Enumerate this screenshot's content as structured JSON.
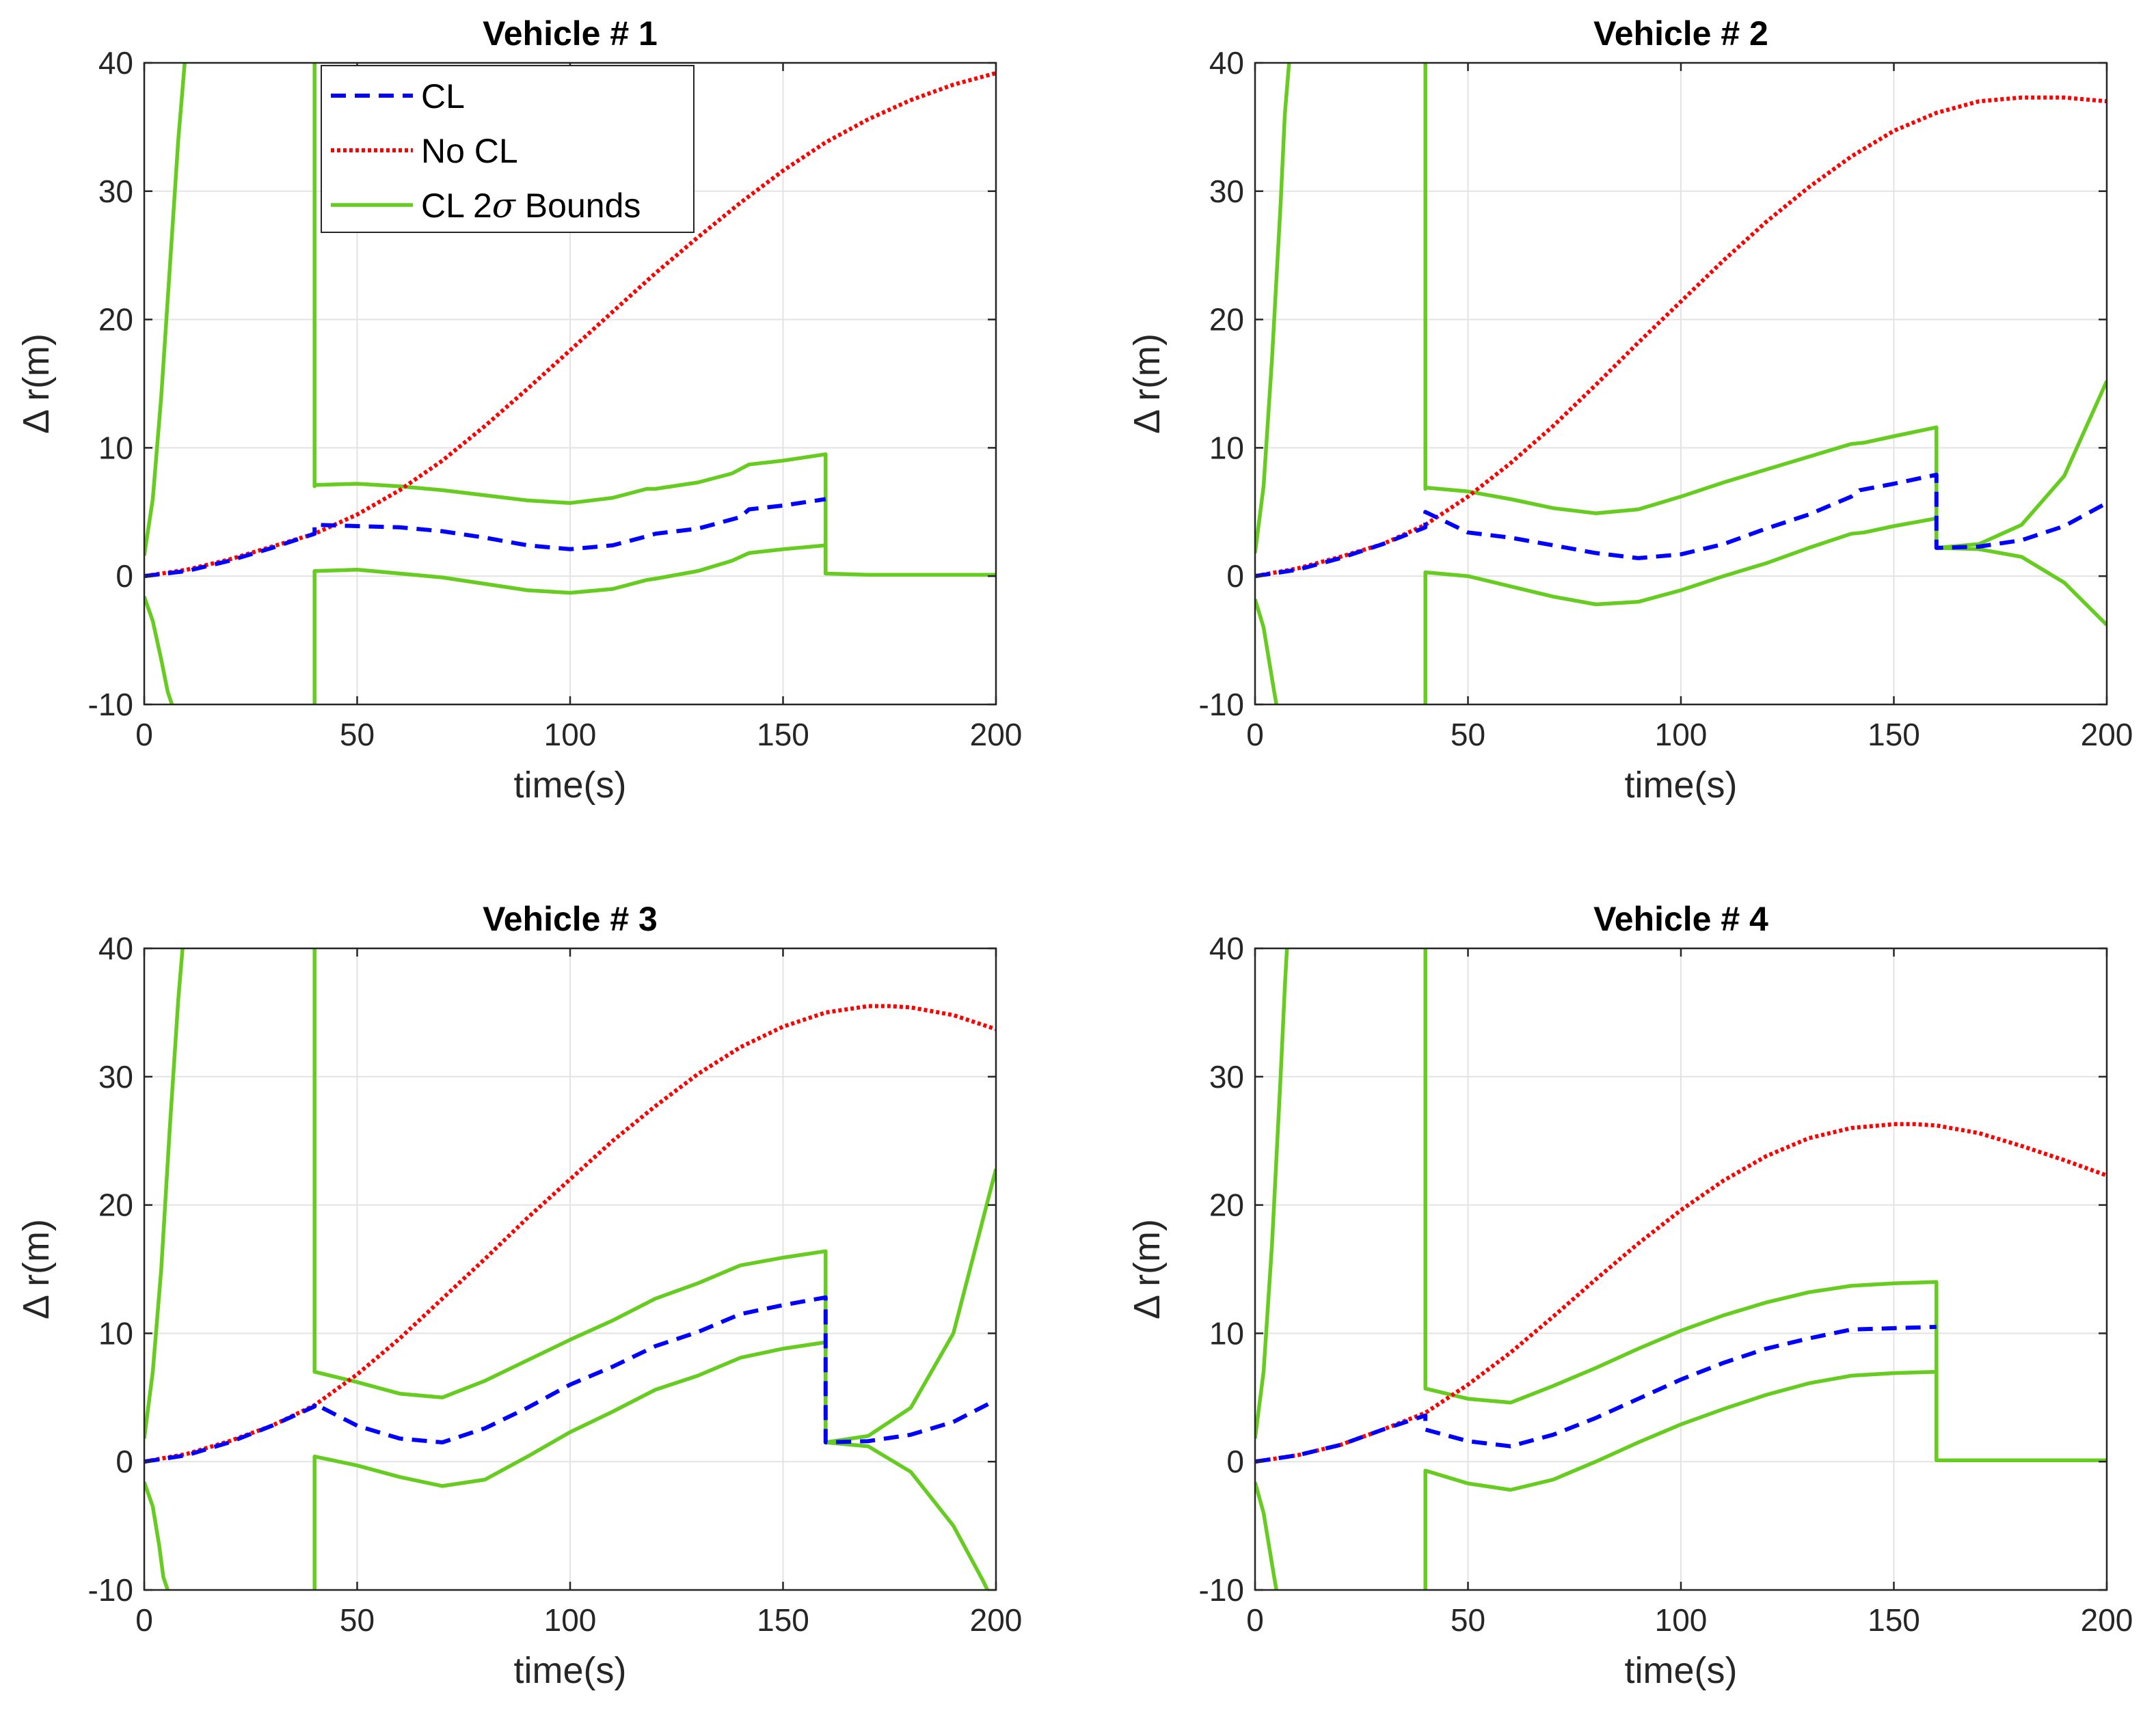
{
  "chart_data": [
    {
      "type": "line",
      "title": "Vehicle # 1",
      "xlabel": "time(s)",
      "ylabel": "Δ r(m)",
      "xlim": [
        0,
        200
      ],
      "ylim": [
        -10,
        40
      ],
      "xticks": [
        0,
        50,
        100,
        150,
        200
      ],
      "yticks": [
        -10,
        0,
        10,
        20,
        30,
        40
      ],
      "grid": true,
      "legend": [
        "CL",
        "No CL",
        "CL 2σ Bounds"
      ],
      "legend_position": "top-left",
      "series": [
        {
          "name": "CL",
          "x": [
            0,
            10,
            20,
            30,
            40,
            40,
            50,
            60,
            70,
            80,
            90,
            100,
            110,
            118,
            120,
            130,
            140,
            142,
            150,
            160
          ],
          "y": [
            0,
            0.4,
            1.2,
            2.2,
            3.3,
            4.0,
            3.9,
            3.8,
            3.5,
            3.0,
            2.4,
            2.1,
            2.4,
            3.1,
            3.3,
            3.7,
            4.6,
            5.2,
            5.5,
            6.0
          ]
        },
        {
          "name": "No CL",
          "x": [
            0,
            10,
            20,
            30,
            40,
            50,
            60,
            70,
            80,
            90,
            100,
            110,
            120,
            130,
            140,
            150,
            160,
            170,
            180,
            190,
            200
          ],
          "y": [
            0,
            0.5,
            1.3,
            2.3,
            3.3,
            4.8,
            6.7,
            9.0,
            11.7,
            14.6,
            17.6,
            20.6,
            23.6,
            26.4,
            29.1,
            31.6,
            33.8,
            35.6,
            37.1,
            38.3,
            39.2
          ]
        },
        {
          "name": "CL 2σ Bounds",
          "x": [
            0,
            2,
            4,
            6,
            8,
            9,
            9.5
          ],
          "y": [
            1.6,
            6,
            14,
            24,
            34,
            38,
            40
          ]
        },
        {
          "name": "CL 2σ Bounds",
          "x": [
            0,
            2,
            4,
            5.5,
            6.5
          ],
          "y": [
            -1.6,
            -3.5,
            -6.5,
            -9,
            -10
          ]
        },
        {
          "name": "CL 2σ Bounds",
          "x": [
            40,
            40,
            40,
            50,
            60,
            70,
            80,
            90,
            100,
            110,
            118,
            120,
            130,
            138,
            142,
            150,
            160,
            160,
            170,
            180,
            190,
            200
          ],
          "y": [
            40,
            7.0,
            7.1,
            7.2,
            7.0,
            6.7,
            6.3,
            5.9,
            5.7,
            6.1,
            6.8,
            6.8,
            7.3,
            8.0,
            8.7,
            9.0,
            9.5,
            0.2,
            0.1,
            0.1,
            0.1,
            0.1
          ]
        },
        {
          "name": "CL 2σ Bounds",
          "x": [
            40,
            40,
            40,
            50,
            60,
            70,
            80,
            90,
            100,
            110,
            118,
            120,
            130,
            138,
            142,
            150,
            160,
            160
          ],
          "y": [
            -10,
            0.3,
            0.4,
            0.5,
            0.2,
            -0.1,
            -0.6,
            -1.1,
            -1.3,
            -1.0,
            -0.3,
            -0.2,
            0.4,
            1.2,
            1.8,
            2.1,
            2.4,
            0.1
          ]
        }
      ]
    },
    {
      "type": "line",
      "title": "Vehicle # 2",
      "xlabel": "time(s)",
      "ylabel": "Δ r(m)",
      "xlim": [
        0,
        200
      ],
      "ylim": [
        -10,
        40
      ],
      "xticks": [
        0,
        50,
        100,
        150,
        200
      ],
      "yticks": [
        -10,
        0,
        10,
        20,
        30,
        40
      ],
      "grid": true,
      "series": [
        {
          "name": "CL",
          "x": [
            0,
            10,
            20,
            30,
            40,
            40,
            50,
            60,
            70,
            80,
            90,
            100,
            110,
            120,
            130,
            140,
            142,
            150,
            160,
            160,
            170,
            180,
            190,
            200
          ],
          "y": [
            0,
            0.5,
            1.4,
            2.5,
            3.8,
            5.0,
            3.4,
            3.0,
            2.4,
            1.8,
            1.4,
            1.7,
            2.5,
            3.7,
            4.8,
            6.2,
            6.7,
            7.2,
            7.9,
            2.2,
            2.3,
            2.8,
            3.9,
            5.7
          ]
        },
        {
          "name": "No CL",
          "x": [
            0,
            10,
            20,
            30,
            40,
            50,
            60,
            70,
            80,
            90,
            100,
            110,
            120,
            130,
            140,
            150,
            160,
            170,
            180,
            190,
            200
          ],
          "y": [
            0,
            0.6,
            1.5,
            2.5,
            4.0,
            6.2,
            8.8,
            11.7,
            14.9,
            18.2,
            21.4,
            24.6,
            27.6,
            30.3,
            32.7,
            34.7,
            36.1,
            37.0,
            37.3,
            37.3,
            37.0
          ]
        },
        {
          "name": "CL 2σ Bounds",
          "x": [
            0,
            2,
            4,
            6,
            7,
            8
          ],
          "y": [
            1.8,
            7,
            17,
            29,
            36,
            40
          ]
        },
        {
          "name": "CL 2σ Bounds",
          "x": [
            0,
            2,
            3.5,
            4.5,
            5
          ],
          "y": [
            -1.8,
            -4,
            -7,
            -9,
            -10
          ]
        },
        {
          "name": "CL 2σ Bounds",
          "x": [
            40,
            40,
            40,
            50,
            60,
            70,
            80,
            90,
            100,
            110,
            120,
            130,
            140,
            143,
            150,
            160,
            160,
            170,
            180,
            190,
            200
          ],
          "y": [
            40,
            6.8,
            6.9,
            6.6,
            6.0,
            5.3,
            4.9,
            5.2,
            6.2,
            7.3,
            8.3,
            9.3,
            10.3,
            10.4,
            10.9,
            11.6,
            2.2,
            2.5,
            4.0,
            7.8,
            15.2
          ]
        },
        {
          "name": "CL 2σ Bounds",
          "x": [
            40,
            40,
            40,
            50,
            60,
            70,
            80,
            90,
            100,
            110,
            120,
            130,
            140,
            143,
            150,
            160,
            160,
            170,
            180,
            190,
            200
          ],
          "y": [
            -10,
            0.2,
            0.3,
            0.0,
            -0.8,
            -1.6,
            -2.2,
            -2.0,
            -1.1,
            0.0,
            1.0,
            2.2,
            3.3,
            3.4,
            3.9,
            4.5,
            2.2,
            2.1,
            1.5,
            -0.5,
            -3.8
          ]
        }
      ]
    },
    {
      "type": "line",
      "title": "Vehicle # 3",
      "xlabel": "time(s)",
      "ylabel": "Δ r(m)",
      "xlim": [
        0,
        200
      ],
      "ylim": [
        -10,
        40
      ],
      "xticks": [
        0,
        50,
        100,
        150,
        200
      ],
      "yticks": [
        -10,
        0,
        10,
        20,
        30,
        40
      ],
      "grid": true,
      "series": [
        {
          "name": "CL",
          "x": [
            0,
            10,
            20,
            30,
            40,
            40,
            50,
            60,
            70,
            80,
            90,
            100,
            110,
            120,
            130,
            140,
            150,
            160,
            160,
            170,
            180,
            190,
            200
          ],
          "y": [
            0,
            0.5,
            1.5,
            2.8,
            4.3,
            4.5,
            2.8,
            1.8,
            1.5,
            2.6,
            4.2,
            6.0,
            7.4,
            9.0,
            10.1,
            11.5,
            12.2,
            12.8,
            1.5,
            1.6,
            2.1,
            3.1,
            4.8
          ]
        },
        {
          "name": "No CL",
          "x": [
            0,
            10,
            20,
            30,
            40,
            50,
            60,
            70,
            80,
            90,
            100,
            110,
            120,
            130,
            140,
            150,
            160,
            170,
            175,
            180,
            190,
            200
          ],
          "y": [
            0,
            0.6,
            1.6,
            2.8,
            4.4,
            6.8,
            9.6,
            12.7,
            15.8,
            19.0,
            22.0,
            25.0,
            27.7,
            30.2,
            32.3,
            33.9,
            35.0,
            35.5,
            35.5,
            35.4,
            34.8,
            33.7
          ]
        },
        {
          "name": "CL 2σ Bounds",
          "x": [
            0,
            2,
            4,
            6,
            8,
            9
          ],
          "y": [
            1.8,
            7,
            15,
            26,
            36,
            40
          ]
        },
        {
          "name": "CL 2σ Bounds",
          "x": [
            0,
            2,
            3.5,
            4.5,
            5.5
          ],
          "y": [
            -1.6,
            -3.5,
            -6.5,
            -9,
            -10
          ]
        },
        {
          "name": "CL 2σ Bounds",
          "x": [
            40,
            40,
            40,
            50,
            60,
            70,
            80,
            90,
            100,
            110,
            120,
            130,
            140,
            150,
            160,
            160,
            170,
            180,
            190,
            200
          ],
          "y": [
            40,
            7.0,
            7.0,
            6.2,
            5.3,
            5.0,
            6.3,
            7.9,
            9.5,
            11.0,
            12.7,
            13.9,
            15.3,
            15.9,
            16.4,
            1.5,
            2.0,
            4.2,
            10.0,
            22.8
          ]
        },
        {
          "name": "CL 2σ Bounds",
          "x": [
            40,
            40,
            40,
            50,
            60,
            70,
            80,
            90,
            100,
            110,
            120,
            130,
            140,
            150,
            160,
            160,
            170,
            180,
            190,
            197,
            198
          ],
          "y": [
            -10,
            0.3,
            0.4,
            -0.3,
            -1.2,
            -1.9,
            -1.4,
            0.4,
            2.3,
            3.9,
            5.6,
            6.7,
            8.1,
            8.8,
            9.3,
            1.5,
            1.2,
            -0.8,
            -5.0,
            -9.3,
            -10
          ]
        }
      ]
    },
    {
      "type": "line",
      "title": "Vehicle # 4",
      "xlabel": "time(s)",
      "ylabel": "Δ r(m)",
      "xlim": [
        0,
        200
      ],
      "ylim": [
        -10,
        40
      ],
      "xticks": [
        0,
        50,
        100,
        150,
        200
      ],
      "yticks": [
        -10,
        0,
        10,
        20,
        30,
        40
      ],
      "grid": true,
      "series": [
        {
          "name": "CL",
          "x": [
            0,
            10,
            20,
            30,
            40,
            40,
            50,
            60,
            70,
            80,
            90,
            100,
            110,
            120,
            130,
            140,
            150,
            160
          ],
          "y": [
            0,
            0.5,
            1.3,
            2.5,
            3.6,
            2.5,
            1.6,
            1.2,
            2.1,
            3.4,
            4.9,
            6.4,
            7.7,
            8.8,
            9.6,
            10.3,
            10.4,
            10.5
          ]
        },
        {
          "name": "No CL",
          "x": [
            0,
            10,
            20,
            30,
            40,
            50,
            60,
            70,
            80,
            90,
            100,
            110,
            120,
            130,
            140,
            150,
            155,
            160,
            170,
            180,
            190,
            200
          ],
          "y": [
            0,
            0.5,
            1.3,
            2.5,
            3.8,
            6.0,
            8.5,
            11.3,
            14.2,
            17.0,
            19.6,
            21.9,
            23.8,
            25.2,
            26.0,
            26.3,
            26.3,
            26.2,
            25.6,
            24.6,
            23.5,
            22.3
          ]
        },
        {
          "name": "CL 2σ Bounds",
          "x": [
            0,
            2,
            4,
            6,
            7,
            7.5
          ],
          "y": [
            1.8,
            7,
            17,
            30,
            37,
            40
          ]
        },
        {
          "name": "CL 2σ Bounds",
          "x": [
            0,
            2,
            3.5,
            4.5,
            5
          ],
          "y": [
            -1.6,
            -4,
            -7,
            -9,
            -10
          ]
        },
        {
          "name": "CL 2σ Bounds",
          "x": [
            40,
            40,
            40,
            50,
            60,
            70,
            80,
            90,
            100,
            110,
            120,
            130,
            140,
            150,
            160,
            160,
            170,
            180,
            190,
            200
          ],
          "y": [
            40,
            5.8,
            5.7,
            4.9,
            4.6,
            5.9,
            7.3,
            8.8,
            10.2,
            11.4,
            12.4,
            13.2,
            13.7,
            13.9,
            14.0,
            0.1,
            0.1,
            0.1,
            0.1,
            0.1
          ]
        },
        {
          "name": "CL 2σ Bounds",
          "x": [
            40,
            40,
            40,
            50,
            60,
            70,
            80,
            90,
            100,
            110,
            120,
            130,
            140,
            150,
            160,
            160
          ],
          "y": [
            -10,
            -0.8,
            -0.7,
            -1.7,
            -2.2,
            -1.4,
            0.0,
            1.5,
            2.9,
            4.1,
            5.2,
            6.1,
            6.7,
            6.9,
            7.0,
            0.1
          ]
        }
      ]
    }
  ],
  "legend": {
    "entries": [
      {
        "label": "CL",
        "style": "dash",
        "color": "#0000ff"
      },
      {
        "label": "No CL",
        "style": "dot",
        "color": "#ff0000"
      },
      {
        "label_prefix": "CL 2",
        "label_sigma": "σ",
        "label_suffix": " Bounds",
        "style": "solid",
        "color": "#66cc1f"
      }
    ]
  },
  "colors": {
    "CL": "#0000ff",
    "No CL": "#ff0000",
    "CL 2σ Bounds": "#66cc1f"
  }
}
